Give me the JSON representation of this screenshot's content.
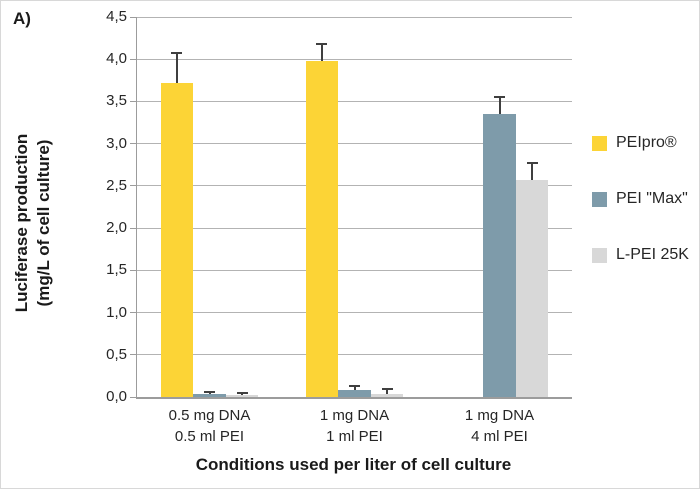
{
  "figure_label": "A)",
  "chart_data": {
    "type": "bar",
    "title": "",
    "xlabel": "Conditions used per liter of cell culture",
    "ylabel_line1": "Luciferase production",
    "ylabel_line2": "(mg/L of cell culture)",
    "categories": [
      [
        "0.5 mg DNA",
        "0.5 ml PEI"
      ],
      [
        "1 mg DNA",
        "1 ml PEI"
      ],
      [
        "1 mg DNA",
        "4 ml PEI"
      ]
    ],
    "series": [
      {
        "name": "PEIpro®",
        "color": "#FCD436",
        "values": [
          3.72,
          3.98,
          0
        ],
        "errors": [
          0.35,
          0.2,
          0
        ]
      },
      {
        "name": "PEI \"Max\"",
        "color": "#7E9BAA",
        "values": [
          0.03,
          0.08,
          3.35
        ],
        "errors": [
          0.03,
          0.05,
          0.2
        ]
      },
      {
        "name": "L-PEI 25K",
        "color": "#D8D8D8",
        "values": [
          0.02,
          0.04,
          2.57
        ],
        "errors": [
          0.03,
          0.05,
          0.2
        ]
      }
    ],
    "ylim": [
      0,
      4.5
    ],
    "ytick_step": 0.5,
    "ytick_labels": [
      "0,0",
      "0,5",
      "1,0",
      "1,5",
      "2,0",
      "2,5",
      "3,0",
      "3,5",
      "4,0",
      "4,5"
    ],
    "grid": true,
    "legend_position": "right",
    "colors": {
      "grid": "#B3B3B3",
      "axis": "#9C9C9C",
      "error_bar": "#3F3F3F"
    }
  }
}
